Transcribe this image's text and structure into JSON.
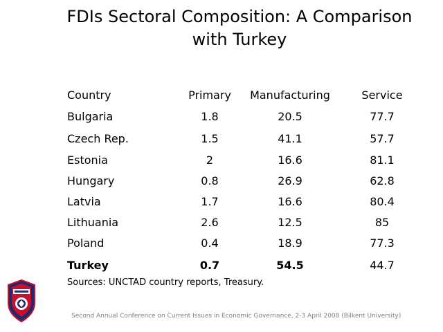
{
  "title_line1": "FDIs Sectoral Composition: A Comparison",
  "title_line2": "with Turkey",
  "table": {
    "headers": [
      "Country",
      "Primary",
      "Manufacturing",
      "Service"
    ],
    "rows": [
      {
        "country": "Bulgaria",
        "primary": "1.8",
        "manufacturing": "20.5",
        "service": "77.7"
      },
      {
        "country": "Czech Rep.",
        "primary": "1.5",
        "manufacturing": "41.1",
        "service": "57.7"
      },
      {
        "country": "Estonia",
        "primary": "2",
        "manufacturing": "16.6",
        "service": "81.1"
      },
      {
        "country": "Hungary",
        "primary": "0.8",
        "manufacturing": "26.9",
        "service": "62.8"
      },
      {
        "country": "Latvia",
        "primary": "1.7",
        "manufacturing": "16.6",
        "service": "80.4"
      },
      {
        "country": "Lithuania",
        "primary": "2.6",
        "manufacturing": "12.5",
        "service": "85"
      },
      {
        "country": "Poland",
        "primary": "0.4",
        "manufacturing": "18.9",
        "service": "77.3"
      },
      {
        "country": "Turkey",
        "primary": "0.7",
        "manufacturing": "54.5",
        "service": "44.7"
      }
    ]
  },
  "sources": "Sources: UNCTAD country reports, Treasury.",
  "footer": "Second Annual Conference on Current Issues in  Economic Governance, 2-3 April 2008 (Bilkent University)",
  "logo": {
    "icon": "university-shield-logo",
    "colors": {
      "red": "#c8102e",
      "navy": "#1f2a6b",
      "white": "#ffffff"
    }
  }
}
